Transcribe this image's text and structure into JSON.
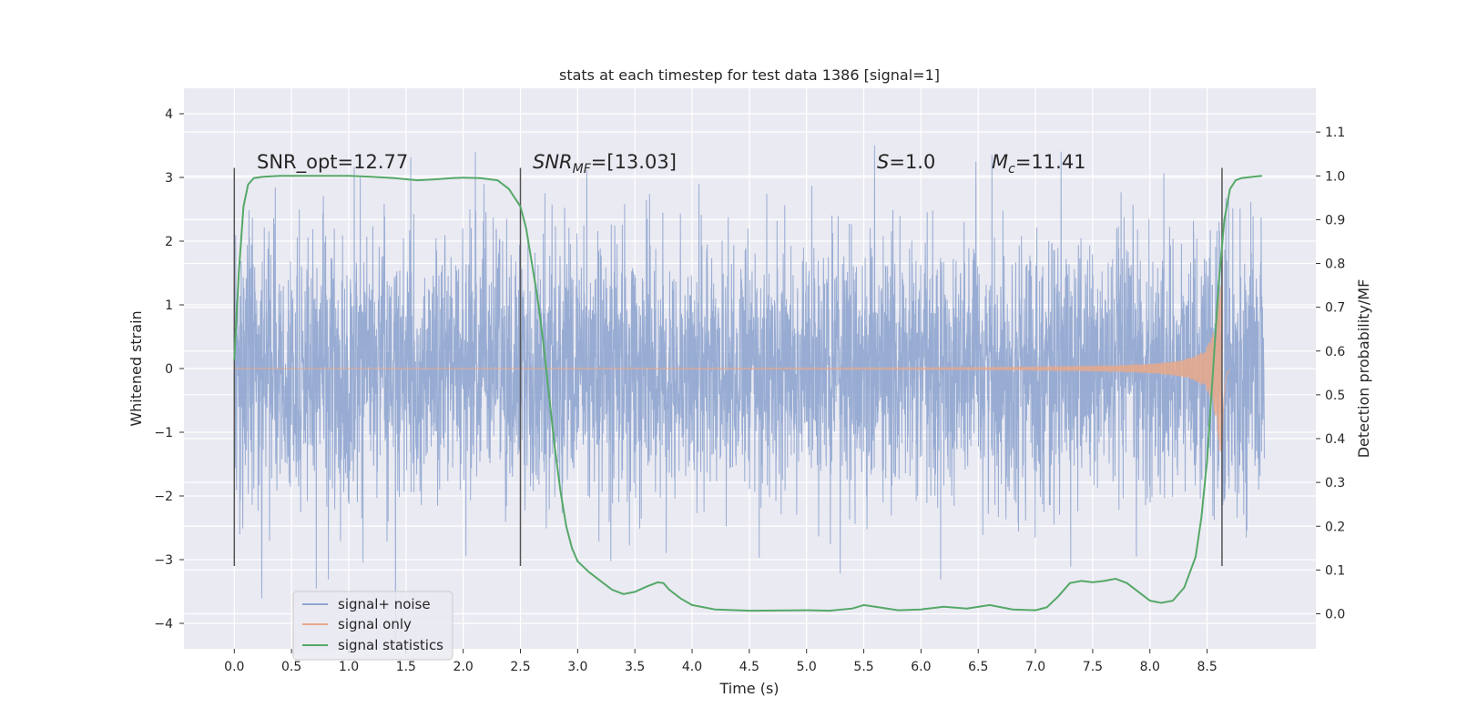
{
  "chart_data": {
    "type": "line",
    "title": "stats at each timestep for test data 1386 [signal=1]",
    "xlabel": "Time (s)",
    "ylabel": "Whitened strain",
    "y2label": "Detection probability/MF",
    "xlim": [
      -0.44,
      9.45
    ],
    "ylim": [
      -4.4,
      4.4
    ],
    "y2lim": [
      -0.08,
      1.2
    ],
    "xticks": [
      "0.0",
      "0.5",
      "1.0",
      "1.5",
      "2.0",
      "2.5",
      "3.0",
      "3.5",
      "4.0",
      "4.5",
      "5.0",
      "5.5",
      "6.0",
      "6.5",
      "7.0",
      "7.5",
      "8.0",
      "8.5"
    ],
    "yticks": [
      "4",
      "3",
      "2",
      "1",
      "0",
      "−1",
      "−2",
      "−3",
      "−4"
    ],
    "y2ticks": [
      "1.1",
      "1.0",
      "0.9",
      "0.8",
      "0.7",
      "0.6",
      "0.5",
      "0.4",
      "0.3",
      "0.2",
      "0.1",
      "0.0"
    ],
    "grid": true,
    "legend_position": "lower-left",
    "colors": {
      "background": "#eaeaf2",
      "grid": "#ffffff",
      "noise": "#8fa5cf",
      "signal": "#e8a88a",
      "statistics": "#55a868",
      "vlines": "#555555"
    },
    "annotations": {
      "snr_opt": "SNR_opt=12.77",
      "snr_mf": "SNR",
      "snr_mf_sub": "MF",
      "snr_mf_value": "=[13.03]",
      "s_label": "S",
      "s_value": "=1.0",
      "mc_label": "M",
      "mc_sub": "c",
      "mc_value": "=11.41"
    },
    "vlines_x": [
      0.0,
      2.5,
      8.63
    ],
    "series": [
      {
        "name": "signal+ noise",
        "kind": "noise",
        "t_range": [
          0.0,
          9.0
        ],
        "samples": 4500,
        "sigma": 1.0
      },
      {
        "name": "signal only",
        "kind": "chirp",
        "t_range": [
          0.0,
          8.7
        ],
        "peak_time": 8.63,
        "peak_amplitude": 1.3
      },
      {
        "name": "signal statistics",
        "kind": "line",
        "x": [
          0.0,
          0.04,
          0.08,
          0.12,
          0.17,
          0.25,
          0.4,
          0.6,
          0.8,
          1.0,
          1.2,
          1.4,
          1.6,
          1.75,
          1.9,
          2.0,
          2.15,
          2.3,
          2.4,
          2.5,
          2.55,
          2.6,
          2.65,
          2.7,
          2.75,
          2.8,
          2.85,
          2.9,
          2.95,
          3.0,
          3.1,
          3.2,
          3.3,
          3.4,
          3.5,
          3.6,
          3.7,
          3.75,
          3.8,
          3.9,
          4.0,
          4.2,
          4.5,
          5.0,
          5.2,
          5.4,
          5.5,
          5.6,
          5.8,
          6.0,
          6.2,
          6.4,
          6.6,
          6.8,
          7.0,
          7.1,
          7.2,
          7.3,
          7.4,
          7.5,
          7.6,
          7.7,
          7.8,
          7.9,
          8.0,
          8.1,
          8.2,
          8.3,
          8.4,
          8.45,
          8.5,
          8.55,
          8.6,
          8.65,
          8.7,
          8.75,
          8.8,
          8.9,
          8.98
        ],
        "y": [
          0.58,
          0.78,
          0.93,
          0.98,
          0.995,
          0.998,
          1.0,
          1.0,
          1.0,
          1.0,
          0.998,
          0.995,
          0.99,
          0.992,
          0.995,
          0.996,
          0.995,
          0.99,
          0.97,
          0.93,
          0.88,
          0.8,
          0.72,
          0.62,
          0.5,
          0.38,
          0.28,
          0.2,
          0.15,
          0.12,
          0.095,
          0.075,
          0.055,
          0.045,
          0.05,
          0.062,
          0.072,
          0.07,
          0.055,
          0.035,
          0.02,
          0.01,
          0.007,
          0.008,
          0.007,
          0.012,
          0.02,
          0.016,
          0.008,
          0.01,
          0.016,
          0.012,
          0.02,
          0.01,
          0.008,
          0.015,
          0.04,
          0.07,
          0.075,
          0.072,
          0.075,
          0.08,
          0.07,
          0.05,
          0.03,
          0.025,
          0.03,
          0.06,
          0.13,
          0.22,
          0.35,
          0.55,
          0.75,
          0.9,
          0.97,
          0.99,
          0.995,
          0.998,
          1.0
        ]
      }
    ]
  }
}
